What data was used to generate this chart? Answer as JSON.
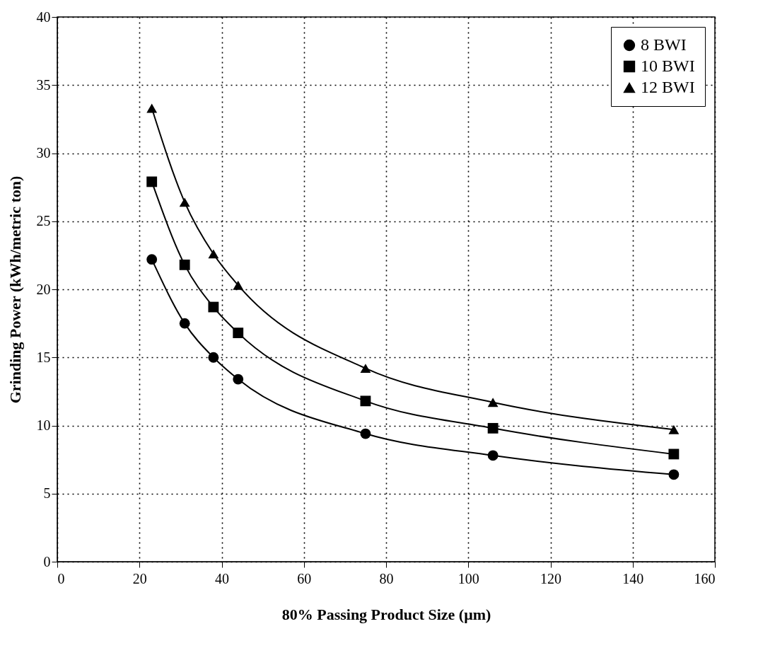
{
  "chart_data": {
    "type": "line",
    "xlabel": "80% Passing Product Size (μm)",
    "ylabel": "Grinding Power (kWh/metric ton)",
    "x": [
      23,
      31,
      38,
      44,
      75,
      106,
      150
    ],
    "series": [
      {
        "name": "8 BWI",
        "color": "#000000",
        "marker": "circle",
        "values": [
          22.2,
          17.5,
          15.0,
          13.4,
          9.4,
          7.8,
          6.4
        ]
      },
      {
        "name": "10 BWI",
        "color": "#000000",
        "marker": "square",
        "values": [
          27.9,
          21.8,
          18.7,
          16.8,
          11.8,
          9.8,
          7.9
        ]
      },
      {
        "name": "12 BWI",
        "color": "#000000",
        "marker": "triangle",
        "values": [
          33.3,
          26.4,
          22.6,
          20.3,
          14.2,
          11.7,
          9.7
        ]
      }
    ],
    "xlim": [
      0,
      160
    ],
    "xticks": [
      0,
      20,
      40,
      60,
      80,
      100,
      120,
      140,
      160
    ],
    "ylim": [
      0,
      40
    ],
    "yticks": [
      0,
      5,
      10,
      15,
      20,
      25,
      30,
      35,
      40
    ],
    "grid": true,
    "legend": "top right",
    "line_style": "solid"
  }
}
